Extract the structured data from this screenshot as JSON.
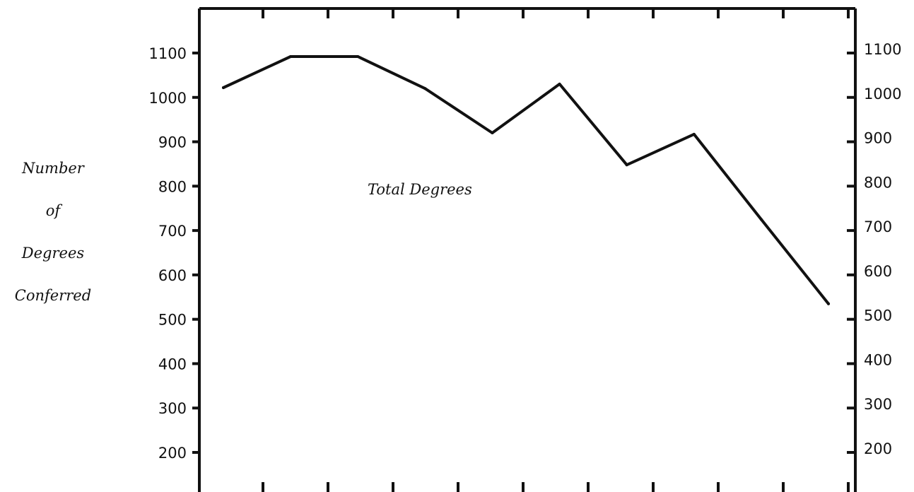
{
  "chart_data": {
    "type": "line",
    "title": "",
    "xlabel": "",
    "ylabel_lines": [
      "Number",
      "of",
      "Degrees",
      "Conferred"
    ],
    "yticks": [
      200,
      300,
      400,
      500,
      600,
      700,
      800,
      900,
      1000,
      1100
    ],
    "yticks_right": [
      200,
      300,
      400,
      500,
      600,
      700,
      800,
      900,
      1000,
      1100
    ],
    "ylim": [
      100,
      1200
    ],
    "x_tick_count": 10,
    "series": [
      {
        "values": [
          1022,
          1092,
          1092,
          1020,
          920,
          1030,
          848,
          917,
          725,
          535
        ]
      }
    ],
    "annotations": [
      {
        "text": "Total Degrees"
      }
    ],
    "grid": false,
    "legend": "none"
  }
}
